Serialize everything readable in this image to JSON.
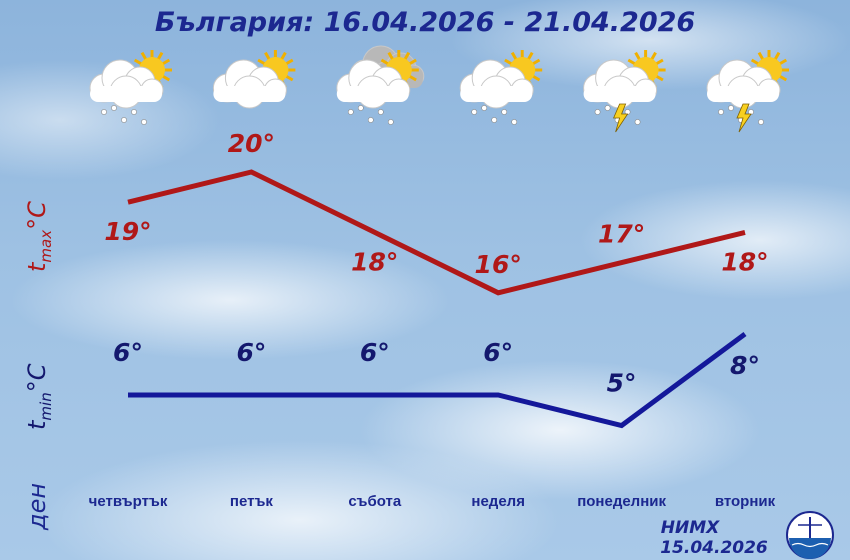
{
  "title": "България: 16.04.2026 - 21.04.2026",
  "chart_data": {
    "type": "line",
    "title": "България: 16.04.2026 - 21.04.2026",
    "categories": [
      "четвъртък",
      "петък",
      "събота",
      "неделя",
      "понеделник",
      "вторник"
    ],
    "series": [
      {
        "values": [
          19,
          20,
          18,
          16,
          17,
          18
        ],
        "color": "#b01818"
      },
      {
        "values": [
          6,
          6,
          6,
          6,
          5,
          8
        ],
        "color": "#14189a"
      }
    ],
    "value_suffix": "°",
    "labels": {
      "tmax_t": "t",
      "tmax_sub": "max",
      "tmin_t": "t",
      "tmin_sub": "min",
      "unit": "°C",
      "day": "ден"
    },
    "icons": [
      "partly-cloudy-rain-icon",
      "partly-cloudy-icon",
      "cloudy-sun-rain-icon",
      "partly-cloudy-rain-icon",
      "thunderstorm-rain-icon",
      "thunderstorm-rain-icon"
    ],
    "grid": false
  },
  "footer": {
    "org": "НИМХ",
    "date": "15.04.2026"
  }
}
